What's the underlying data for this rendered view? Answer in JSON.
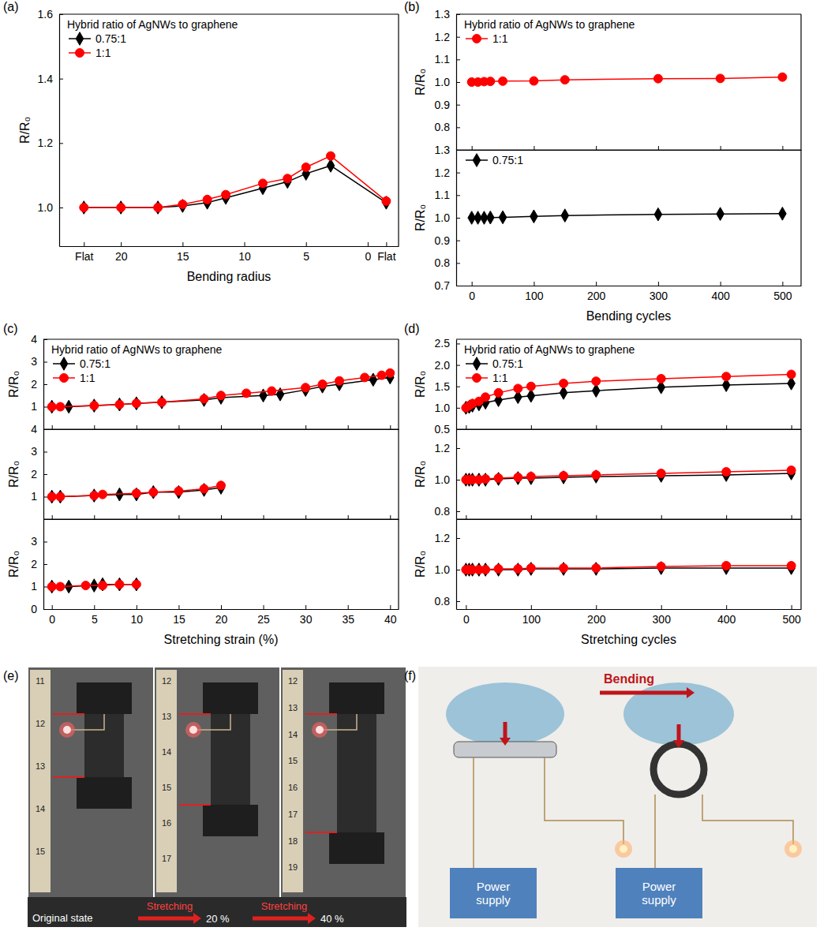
{
  "chart_data": [
    {
      "type": "line",
      "panel": "(a)",
      "legend_title": "Hybrid ratio of AgNWs to graphene",
      "legend": "upper left",
      "x_label": "Bending radius",
      "y_label": "R/R₀",
      "xlim": [
        25,
        -2.5
      ],
      "xticks": [
        {
          "value": 23,
          "label": "Flat"
        },
        20,
        15,
        10,
        5,
        0,
        {
          "value": -1.5,
          "label": "Flat"
        }
      ],
      "ylim": [
        0.88,
        1.6
      ],
      "yticks": [
        {
          "value": 1,
          "label": "1.0"
        },
        1.2,
        1.4,
        1.6
      ],
      "x": [
        23,
        20,
        17,
        15,
        13,
        11.5,
        8.5,
        6.5,
        5,
        3,
        -1.5
      ],
      "series": [
        {
          "name": "0.75:1",
          "color": "#000000",
          "marker": "diamond",
          "values": [
            1.0,
            1.0,
            1.0,
            1.005,
            1.015,
            1.03,
            1.06,
            1.08,
            1.105,
            1.13,
            1.015
          ]
        },
        {
          "name": "1:1",
          "color": "#ff0000",
          "marker": "circle",
          "values": [
            1.0,
            1.0,
            1.0,
            1.01,
            1.025,
            1.04,
            1.075,
            1.09,
            1.125,
            1.16,
            1.02
          ]
        }
      ]
    },
    {
      "type": "line",
      "panel": "(b)",
      "legend_title": "Hybrid ratio of AgNWs to graphene",
      "legend": "upper left",
      "y_label": "R/R₀",
      "tick_labels": "y",
      "xlim": [
        -25,
        530
      ],
      "xticks": [
        0,
        100,
        200,
        300,
        400,
        500
      ],
      "ylim": [
        0.7,
        1.3
      ],
      "yticks": [
        0.8,
        0.9,
        {
          "value": 1,
          "label": "1.0"
        },
        1.1,
        1.2,
        1.3
      ],
      "x": [
        0,
        10,
        20,
        30,
        50,
        100,
        150,
        300,
        400,
        500
      ],
      "series": [
        {
          "name": "1:1",
          "color": "#ff0000",
          "marker": "circle",
          "values": [
            1.0,
            1.0,
            1.002,
            1.003,
            1.004,
            1.005,
            1.01,
            1.015,
            1.016,
            1.022
          ]
        }
      ]
    },
    {
      "type": "line",
      "legend": "upper left",
      "x_label": "Bending cycles",
      "y_label": "R/R₀",
      "xlim": [
        -25,
        530
      ],
      "xticks": [
        0,
        100,
        200,
        300,
        400,
        500
      ],
      "ylim": [
        0.7,
        1.3
      ],
      "yticks": [
        0.7,
        0.8,
        0.9,
        {
          "value": 1,
          "label": "1.0"
        },
        1.1,
        1.2,
        1.3
      ],
      "x": [
        0,
        10,
        20,
        30,
        50,
        100,
        150,
        300,
        400,
        500
      ],
      "series": [
        {
          "name": "0.75:1",
          "color": "#000000",
          "marker": "diamond",
          "values": [
            1.0,
            1.0,
            1.0,
            1.001,
            1.002,
            1.006,
            1.01,
            1.015,
            1.017,
            1.018
          ]
        }
      ]
    },
    {
      "type": "line",
      "panel": "(c)",
      "legend_title": "Hybrid ratio of AgNWs to graphene",
      "legend": "upper left",
      "y_label": "R/R₀",
      "tick_labels": "y",
      "xlim": [
        -1,
        41
      ],
      "xticks": [
        0,
        5,
        10,
        15,
        20,
        25,
        30,
        35,
        40
      ],
      "ylim": [
        0,
        4
      ],
      "yticks": [
        1,
        2,
        3,
        4
      ],
      "series": [
        {
          "name": "0.75:1",
          "color": "#000000",
          "marker": "diamond",
          "x": [
            0,
            2,
            5,
            8,
            10,
            13,
            18,
            20,
            25,
            27,
            30,
            32,
            34,
            38,
            40
          ],
          "values": [
            1.0,
            1.0,
            1.05,
            1.1,
            1.15,
            1.2,
            1.3,
            1.4,
            1.5,
            1.55,
            1.75,
            1.9,
            2.0,
            2.2,
            2.3
          ]
        },
        {
          "name": "1:1",
          "color": "#ff0000",
          "marker": "circle",
          "x": [
            0,
            1,
            5,
            8,
            10,
            13,
            18,
            20,
            23,
            26,
            30,
            32,
            34,
            37,
            39,
            40
          ],
          "values": [
            1.0,
            1.0,
            1.05,
            1.1,
            1.15,
            1.2,
            1.35,
            1.5,
            1.6,
            1.7,
            1.85,
            2.0,
            2.15,
            2.3,
            2.4,
            2.5
          ]
        }
      ]
    },
    {
      "type": "line",
      "y_label": "R/R₀",
      "tick_labels": "y",
      "xlim": [
        -1,
        41
      ],
      "xticks": [
        0,
        5,
        10,
        15,
        20,
        25,
        30,
        35,
        40
      ],
      "ylim": [
        0,
        4
      ],
      "yticks": [
        1,
        2,
        3,
        4
      ],
      "series": [
        {
          "color": "#000000",
          "marker": "diamond",
          "x": [
            0,
            1,
            5,
            8,
            10,
            12,
            15,
            18,
            20
          ],
          "values": [
            1.0,
            1.0,
            1.05,
            1.1,
            1.1,
            1.2,
            1.2,
            1.3,
            1.4
          ]
        },
        {
          "color": "#ff0000",
          "marker": "circle",
          "x": [
            0,
            1,
            5,
            6,
            10,
            12,
            15,
            18,
            20
          ],
          "values": [
            1.0,
            1.0,
            1.05,
            1.1,
            1.15,
            1.2,
            1.25,
            1.35,
            1.5
          ]
        }
      ]
    },
    {
      "type": "line",
      "x_label": "Stretching strain (%)",
      "y_label": "R/R₀",
      "xlim": [
        -1,
        41
      ],
      "xticks": [
        0,
        5,
        10,
        15,
        20,
        25,
        30,
        35,
        40
      ],
      "ylim": [
        0,
        4
      ],
      "yticks": [
        0,
        1,
        2,
        3
      ],
      "series": [
        {
          "color": "#000000",
          "marker": "diamond",
          "x": [
            0,
            2,
            5,
            6,
            8,
            10
          ],
          "values": [
            1.0,
            1.0,
            1.05,
            1.1,
            1.1,
            1.1
          ]
        },
        {
          "color": "#ff0000",
          "marker": "circle",
          "x": [
            0,
            1,
            4,
            6,
            8,
            10
          ],
          "values": [
            1.0,
            1.0,
            1.05,
            1.05,
            1.1,
            1.1
          ]
        }
      ]
    },
    {
      "type": "line",
      "panel": "(d)",
      "legend_title": "Hybrid ratio of AgNWs to graphene",
      "legend": "upper left",
      "y_label": "R/R₀",
      "tick_labels": "y",
      "xlim": [
        -15,
        515
      ],
      "xticks": [
        0,
        100,
        200,
        300,
        400,
        500
      ],
      "ylim": [
        0.5,
        2.6
      ],
      "yticks": [
        0.5,
        {
          "value": 1,
          "label": "1.0"
        },
        1.5,
        {
          "value": 2,
          "label": "2.0"
        },
        2.5
      ],
      "x": [
        0,
        5,
        10,
        20,
        30,
        50,
        80,
        100,
        150,
        200,
        300,
        400,
        500
      ],
      "series": [
        {
          "name": "0.75:1",
          "color": "#000000",
          "marker": "diamond",
          "values": [
            1.0,
            1.02,
            1.05,
            1.08,
            1.12,
            1.18,
            1.25,
            1.28,
            1.35,
            1.4,
            1.48,
            1.53,
            1.57
          ]
        },
        {
          "name": "1:1",
          "color": "#ff0000",
          "marker": "circle",
          "values": [
            1.0,
            1.05,
            1.1,
            1.15,
            1.25,
            1.35,
            1.45,
            1.5,
            1.57,
            1.62,
            1.68,
            1.73,
            1.78
          ]
        }
      ]
    },
    {
      "type": "line",
      "y_label": "R/R₀",
      "tick_labels": "y",
      "xlim": [
        -15,
        515
      ],
      "xticks": [
        0,
        100,
        200,
        300,
        400,
        500
      ],
      "ylim": [
        0.75,
        1.32
      ],
      "yticks": [
        0.8,
        {
          "value": 1,
          "label": "1.0"
        },
        1.2
      ],
      "x": [
        0,
        5,
        10,
        20,
        30,
        50,
        80,
        100,
        150,
        200,
        300,
        400,
        500
      ],
      "series": [
        {
          "color": "#000000",
          "marker": "diamond",
          "values": [
            1.0,
            1.0,
            1.0,
            1.0,
            1.0,
            1.005,
            1.01,
            1.01,
            1.015,
            1.02,
            1.025,
            1.03,
            1.04
          ]
        },
        {
          "color": "#ff0000",
          "marker": "circle",
          "values": [
            1.0,
            1.0,
            1.0,
            1.0,
            1.005,
            1.01,
            1.015,
            1.02,
            1.025,
            1.03,
            1.04,
            1.05,
            1.06
          ]
        }
      ]
    },
    {
      "type": "line",
      "x_label": "Stretching cycles",
      "y_label": "R/R₀",
      "xlim": [
        -15,
        515
      ],
      "xticks": [
        0,
        100,
        200,
        300,
        400,
        500
      ],
      "ylim": [
        0.75,
        1.32
      ],
      "yticks": [
        0.8,
        {
          "value": 1,
          "label": "1.0"
        },
        1.2
      ],
      "x": [
        0,
        5,
        10,
        20,
        30,
        50,
        80,
        100,
        150,
        200,
        300,
        400,
        500
      ],
      "series": [
        {
          "color": "#000000",
          "marker": "diamond",
          "values": [
            1.0,
            1.0,
            1.0,
            1.0,
            1.0,
            1.0,
            1.0,
            1.005,
            1.005,
            1.005,
            1.01,
            1.01,
            1.01
          ]
        },
        {
          "color": "#ff0000",
          "marker": "circle",
          "values": [
            1.0,
            1.0,
            1.0,
            1.0,
            1.0,
            1.005,
            1.005,
            1.01,
            1.01,
            1.01,
            1.02,
            1.025,
            1.025
          ]
        }
      ]
    }
  ],
  "photos": [
    {
      "panel": "(e)",
      "rulers": [
        [
          "11",
          "12",
          "13",
          "14",
          "15"
        ],
        [
          "12",
          "13",
          "14",
          "15",
          "16",
          "17"
        ],
        [
          "12",
          "13",
          "14",
          "15",
          "16",
          "17",
          "18",
          "19"
        ]
      ],
      "start_label": "Original state",
      "steps": [
        {
          "arrow": "Stretching",
          "label": "20 %"
        },
        {
          "arrow": "Stretching",
          "label": "40 %"
        }
      ]
    },
    {
      "panel": "(f)",
      "arrow": "Bending",
      "boxes": [
        "Power supply",
        "Power supply"
      ]
    }
  ]
}
